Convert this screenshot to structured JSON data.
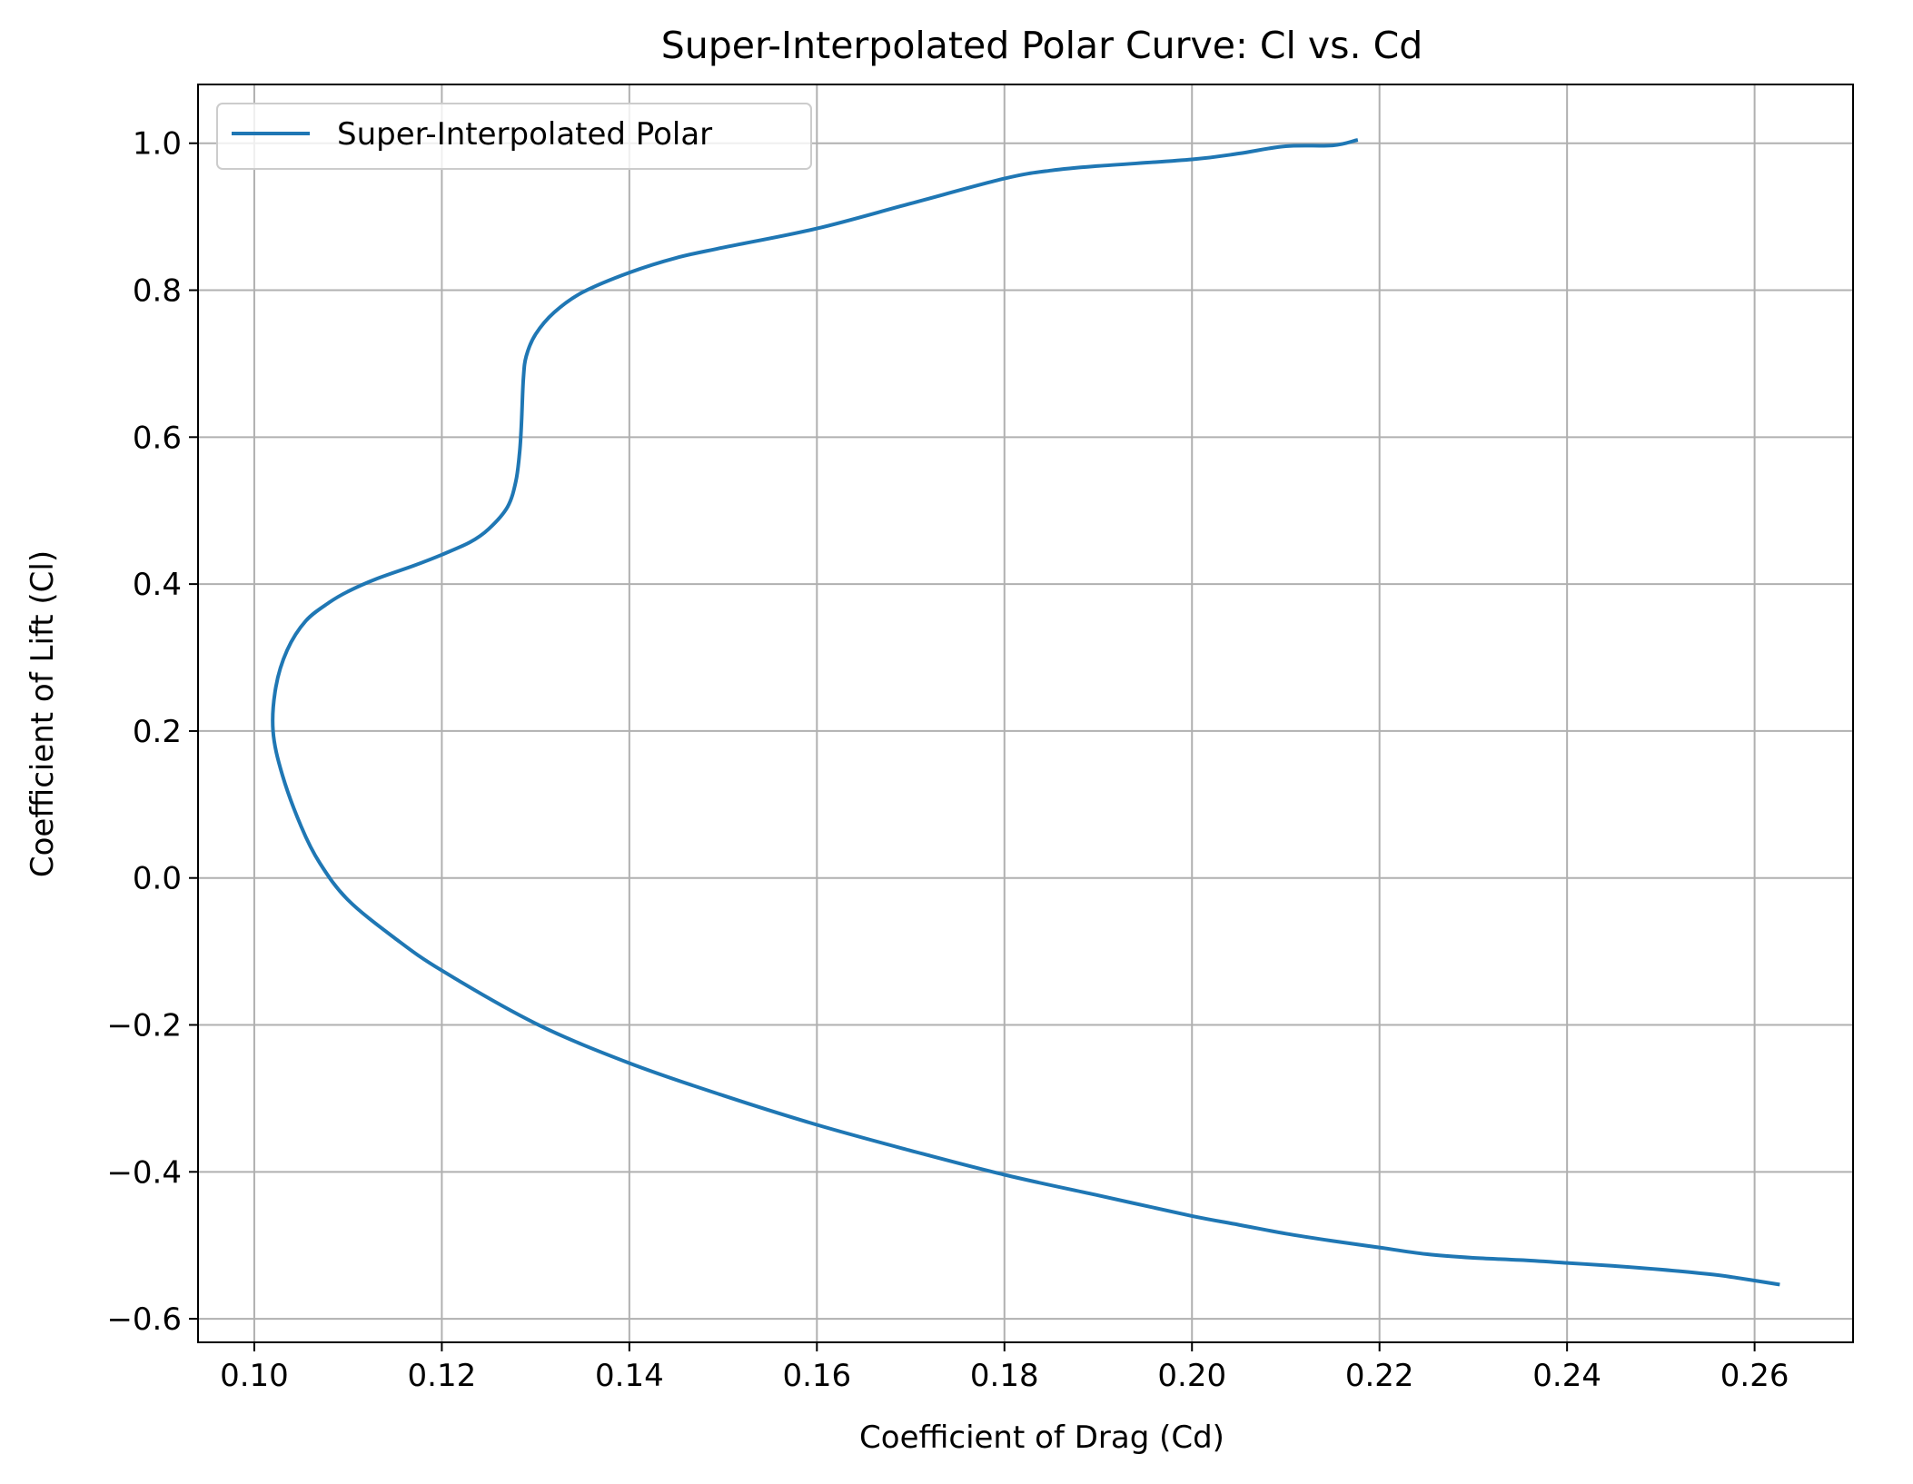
{
  "chart_data": {
    "type": "line",
    "title": "Super-Interpolated Polar Curve: Cl vs. Cd",
    "xlabel": "Coefficient of Drag (Cd)",
    "ylabel": "Coefficient of Lift (Cl)",
    "xlim": [
      0.094,
      0.2705
    ],
    "ylim": [
      -0.632,
      1.08
    ],
    "xticks": [
      0.1,
      0.12,
      0.14,
      0.16,
      0.18,
      0.2,
      0.22,
      0.24,
      0.26
    ],
    "xtick_labels": [
      "0.10",
      "0.12",
      "0.14",
      "0.16",
      "0.18",
      "0.20",
      "0.22",
      "0.24",
      "0.26"
    ],
    "yticks": [
      -0.6,
      -0.4,
      -0.2,
      0.0,
      0.2,
      0.4,
      0.6,
      0.8,
      1.0
    ],
    "ytick_labels": [
      "−0.6",
      "−0.4",
      "−0.2",
      "0.0",
      "0.2",
      "0.4",
      "0.6",
      "0.8",
      "1.0"
    ],
    "grid": true,
    "legend_position": "upper-left",
    "series": [
      {
        "name": "Super-Interpolated Polar",
        "color": "#1f77b4",
        "x": [
          0.2625,
          0.258,
          0.255,
          0.25,
          0.245,
          0.24,
          0.235,
          0.23,
          0.225,
          0.22,
          0.215,
          0.21,
          0.205,
          0.2,
          0.19,
          0.18,
          0.17,
          0.16,
          0.15,
          0.14,
          0.13,
          0.12,
          0.115,
          0.11,
          0.107,
          0.105,
          0.103,
          0.102,
          0.1023,
          0.1035,
          0.1055,
          0.108,
          0.11,
          0.113,
          0.117,
          0.12,
          0.123,
          0.125,
          0.127,
          0.1279,
          0.1283,
          0.1285,
          0.1287,
          0.129,
          0.13,
          0.132,
          0.135,
          0.14,
          0.145,
          0.15,
          0.16,
          0.17,
          0.18,
          0.185,
          0.19,
          0.2,
          0.205,
          0.21,
          0.215,
          0.2175
        ],
        "y": [
          -0.553,
          -0.544,
          -0.539,
          -0.533,
          -0.528,
          -0.524,
          -0.52,
          -0.517,
          -0.512,
          -0.503,
          -0.494,
          -0.484,
          -0.472,
          -0.46,
          -0.432,
          -0.404,
          -0.371,
          -0.336,
          -0.296,
          -0.252,
          -0.198,
          -0.126,
          -0.082,
          -0.03,
          0.02,
          0.07,
          0.14,
          0.2,
          0.26,
          0.31,
          0.35,
          0.375,
          0.39,
          0.407,
          0.425,
          0.44,
          0.457,
          0.475,
          0.505,
          0.54,
          0.58,
          0.62,
          0.68,
          0.71,
          0.74,
          0.77,
          0.797,
          0.824,
          0.844,
          0.858,
          0.884,
          0.918,
          0.952,
          0.963,
          0.969,
          0.978,
          0.986,
          0.996,
          0.997,
          1.004
        ]
      }
    ]
  }
}
